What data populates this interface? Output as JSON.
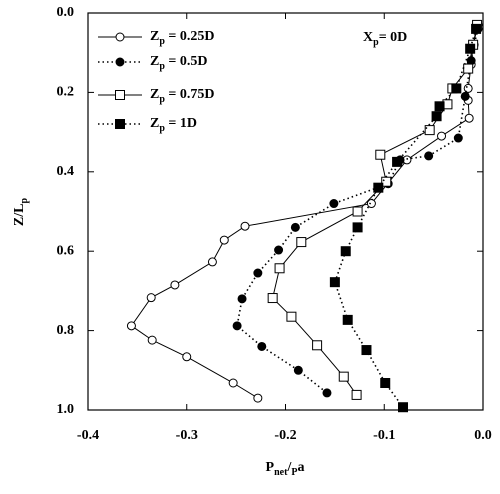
{
  "chart_data": {
    "type": "line",
    "xlabel": "Pnet/Pa",
    "ylabel": "Z/Lp",
    "annotation": "Xp= 0D",
    "xlim": [
      -0.4,
      0
    ],
    "xticks": [
      -0.4,
      -0.3,
      -0.2,
      -0.1,
      {
        "value": 0,
        "label": "0.0"
      }
    ],
    "ylim": [
      0,
      1
    ],
    "yticks": [
      {
        "value": 0,
        "label": "0.0"
      },
      0.2,
      0.4,
      0.6,
      0.8,
      {
        "value": 1,
        "label": "1.0"
      }
    ],
    "y_inverted": true,
    "legend": "upper left",
    "series": [
      {
        "name": "Zp = 0.25D",
        "color": "#000000",
        "marker": "circle",
        "filled": false,
        "dashed": false,
        "x": [
          -0.005,
          -0.01,
          -0.012,
          -0.015,
          -0.015,
          -0.014,
          -0.042,
          -0.077,
          -0.113,
          -0.241,
          -0.262,
          -0.274,
          -0.312,
          -0.336,
          -0.356,
          -0.335,
          -0.3,
          -0.253,
          -0.228
        ],
        "y": [
          0.03,
          0.08,
          0.13,
          0.19,
          0.22,
          0.265,
          0.31,
          0.37,
          0.48,
          0.537,
          0.572,
          0.627,
          0.685,
          0.717,
          0.788,
          0.824,
          0.866,
          0.932,
          0.97
        ]
      },
      {
        "name": "Zp = 0.5D",
        "color": "#000000",
        "marker": "circle",
        "filled": true,
        "dashed": true,
        "x": [
          -0.005,
          -0.009,
          -0.012,
          -0.018,
          -0.025,
          -0.055,
          -0.084,
          -0.096,
          -0.151,
          -0.19,
          -0.207,
          -0.228,
          -0.244,
          -0.249,
          -0.224,
          -0.187,
          -0.158
        ],
        "y": [
          0.04,
          0.08,
          0.12,
          0.21,
          0.315,
          0.36,
          0.37,
          0.43,
          0.48,
          0.54,
          0.597,
          0.655,
          0.72,
          0.788,
          0.84,
          0.9,
          0.957
        ]
      },
      {
        "name": "Zp = 0.75D",
        "color": "#000000",
        "marker": "square",
        "filled": false,
        "dashed": false,
        "x": [
          -0.006,
          -0.01,
          -0.015,
          -0.031,
          -0.036,
          -0.054,
          -0.104,
          -0.098,
          -0.127,
          -0.184,
          -0.206,
          -0.213,
          -0.194,
          -0.168,
          -0.141,
          -0.128
        ],
        "y": [
          0.03,
          0.08,
          0.14,
          0.19,
          0.23,
          0.295,
          0.357,
          0.425,
          0.5,
          0.577,
          0.643,
          0.718,
          0.765,
          0.837,
          0.916,
          0.962
        ]
      },
      {
        "name": "Zp = 1D",
        "color": "#000000",
        "marker": "square",
        "filled": true,
        "dashed": true,
        "x": [
          -0.007,
          -0.013,
          -0.027,
          -0.044,
          -0.047,
          -0.087,
          -0.106,
          -0.127,
          -0.139,
          -0.15,
          -0.137,
          -0.118,
          -0.099,
          -0.081
        ],
        "y": [
          0.04,
          0.09,
          0.19,
          0.235,
          0.26,
          0.375,
          0.44,
          0.54,
          0.6,
          0.678,
          0.773,
          0.849,
          0.932,
          0.993
        ]
      }
    ]
  }
}
